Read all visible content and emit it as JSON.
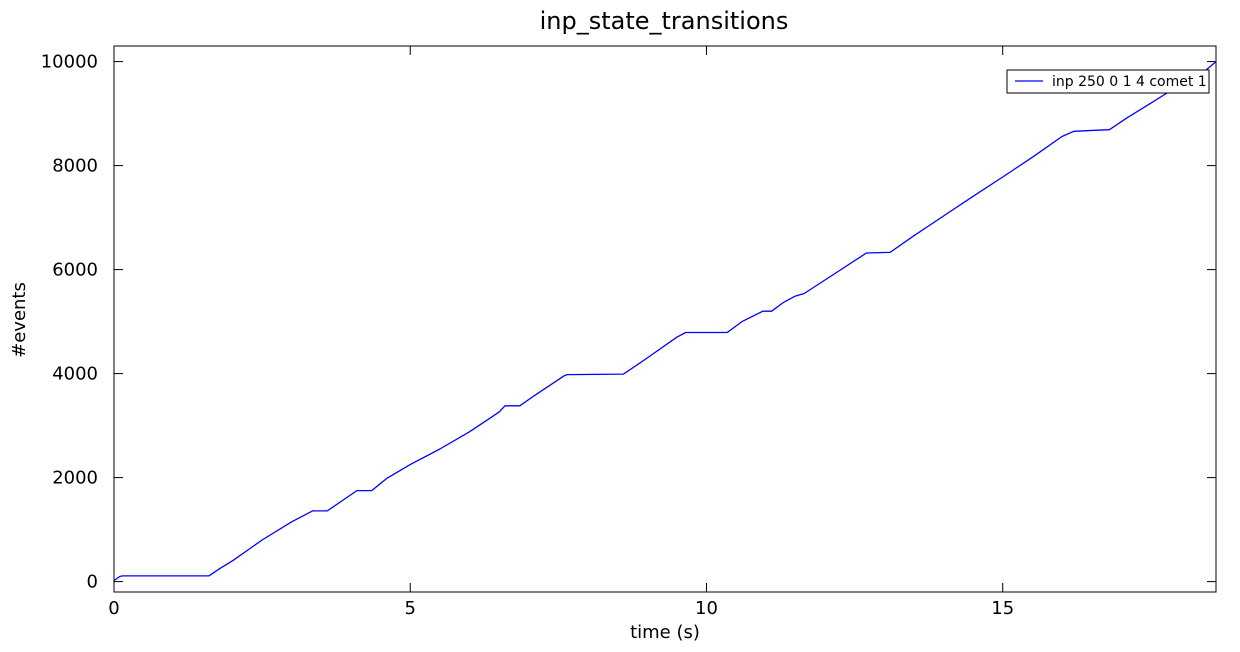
{
  "chart_data": {
    "type": "line",
    "title": "inp_state_transitions",
    "xlabel": "time (s)",
    "ylabel": "#events",
    "xlim": [
      0,
      18.6
    ],
    "ylim": [
      -200,
      10300
    ],
    "xticks": [
      0,
      5,
      10,
      15
    ],
    "yticks": [
      0,
      2000,
      4000,
      6000,
      8000,
      10000
    ],
    "grid": false,
    "legend_position": "top-right",
    "colors": {
      "series": "#0000ff"
    },
    "series": [
      {
        "name": "inp 250 0 1 4 comet 1",
        "x": [
          0.0,
          0.1,
          0.15,
          1.6,
          1.8,
          2.0,
          2.5,
          3.0,
          3.35,
          3.6,
          4.1,
          4.35,
          4.6,
          5.0,
          5.5,
          6.0,
          6.5,
          6.6,
          6.85,
          7.1,
          7.6,
          7.65,
          8.6,
          9.0,
          9.5,
          9.65,
          10.35,
          10.6,
          10.95,
          11.1,
          11.3,
          11.5,
          11.65,
          12.0,
          12.7,
          13.1,
          13.5,
          14.0,
          14.5,
          15.0,
          15.5,
          16.0,
          16.2,
          16.6,
          16.8,
          17.1,
          17.5,
          18.0,
          18.35,
          18.6
        ],
        "y": [
          20,
          100,
          110,
          110,
          260,
          400,
          800,
          1150,
          1360,
          1360,
          1750,
          1750,
          1980,
          2250,
          2550,
          2880,
          3260,
          3380,
          3380,
          3580,
          3960,
          3980,
          3990,
          4300,
          4700,
          4790,
          4790,
          5000,
          5200,
          5200,
          5370,
          5490,
          5540,
          5800,
          6320,
          6330,
          6650,
          7030,
          7410,
          7780,
          8160,
          8560,
          8660,
          8680,
          8690,
          8920,
          9200,
          9560,
          9760,
          10000
        ]
      }
    ]
  }
}
